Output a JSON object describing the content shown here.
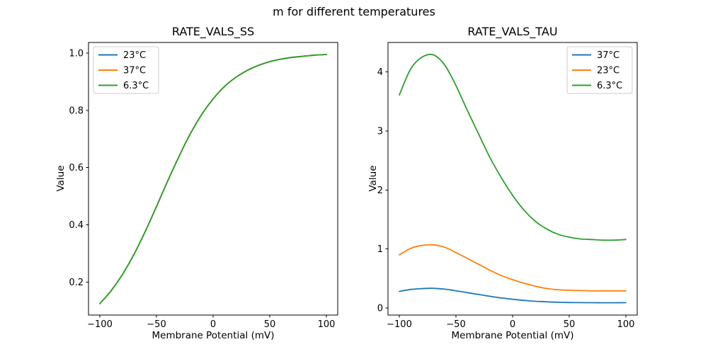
{
  "figure": {
    "suptitle": "m for different temperatures",
    "background": "#ffffff"
  },
  "palette": {
    "blue": "#1f77b4",
    "orange": "#ff7f0e",
    "green": "#2ca02c",
    "spine": "#000000",
    "legend_border": "#cccccc"
  },
  "chart_data": [
    {
      "type": "line",
      "title": "RATE_VALS_SS",
      "xlabel": "Membrane Potential (mV)",
      "ylabel": "Value",
      "xlim": [
        -110,
        110
      ],
      "ylim": [
        0.085,
        1.037
      ],
      "grid": false,
      "xticks": [
        {
          "v": -100,
          "label": "−100"
        },
        {
          "v": -50,
          "label": "−50"
        },
        {
          "v": 0,
          "label": "0"
        },
        {
          "v": 50,
          "label": "50"
        },
        {
          "v": 100,
          "label": "100"
        }
      ],
      "yticks": [
        {
          "v": 0.2,
          "label": "0.2"
        },
        {
          "v": 0.4,
          "label": "0.4"
        },
        {
          "v": 0.6,
          "label": "0.6"
        },
        {
          "v": 0.8,
          "label": "0.8"
        },
        {
          "v": 1.0,
          "label": "1.0"
        }
      ],
      "legend": {
        "position": "upper-left"
      },
      "x": [
        -100,
        -90,
        -80,
        -70,
        -60,
        -50,
        -40,
        -30,
        -20,
        -10,
        0,
        10,
        20,
        30,
        40,
        50,
        60,
        70,
        80,
        90,
        100
      ],
      "series": [
        {
          "name": "23°C",
          "color": "#1f77b4",
          "values": [
            0.125,
            0.17,
            0.227,
            0.296,
            0.376,
            0.464,
            0.554,
            0.64,
            0.719,
            0.786,
            0.84,
            0.883,
            0.915,
            0.939,
            0.957,
            0.97,
            0.979,
            0.985,
            0.989,
            0.993,
            0.995
          ]
        },
        {
          "name": "37°C",
          "color": "#ff7f0e",
          "values": [
            0.125,
            0.17,
            0.227,
            0.296,
            0.376,
            0.464,
            0.554,
            0.64,
            0.719,
            0.786,
            0.84,
            0.883,
            0.915,
            0.939,
            0.957,
            0.97,
            0.979,
            0.985,
            0.989,
            0.993,
            0.995
          ]
        },
        {
          "name": "6.3°C",
          "color": "#2ca02c",
          "values": [
            0.125,
            0.17,
            0.227,
            0.296,
            0.376,
            0.464,
            0.554,
            0.64,
            0.719,
            0.786,
            0.84,
            0.883,
            0.915,
            0.939,
            0.957,
            0.97,
            0.979,
            0.985,
            0.989,
            0.993,
            0.995
          ]
        }
      ],
      "note": "all three temperature curves coincide exactly; green (drawn last) is visible"
    },
    {
      "type": "line",
      "title": "RATE_VALS_TAU",
      "xlabel": "Membrane Potential (mV)",
      "ylabel": "Value",
      "xlim": [
        -110,
        110
      ],
      "ylim": [
        -0.12,
        4.5
      ],
      "grid": false,
      "xticks": [
        {
          "v": -100,
          "label": "−100"
        },
        {
          "v": -50,
          "label": "−50"
        },
        {
          "v": 0,
          "label": "0"
        },
        {
          "v": 50,
          "label": "50"
        },
        {
          "v": 100,
          "label": "100"
        }
      ],
      "yticks": [
        {
          "v": 0,
          "label": "0"
        },
        {
          "v": 1,
          "label": "1"
        },
        {
          "v": 2,
          "label": "2"
        },
        {
          "v": 3,
          "label": "3"
        },
        {
          "v": 4,
          "label": "4"
        }
      ],
      "legend": {
        "position": "upper-right"
      },
      "x": [
        -100,
        -90,
        -80,
        -70,
        -60,
        -50,
        -40,
        -30,
        -20,
        -10,
        0,
        10,
        20,
        30,
        40,
        50,
        60,
        70,
        80,
        90,
        100
      ],
      "series": [
        {
          "name": "37°C",
          "color": "#1f77b4",
          "values": [
            0.28,
            0.314,
            0.329,
            0.333,
            0.319,
            0.292,
            0.26,
            0.229,
            0.198,
            0.171,
            0.148,
            0.129,
            0.114,
            0.104,
            0.097,
            0.093,
            0.091,
            0.09,
            0.089,
            0.089,
            0.09
          ]
        },
        {
          "name": "23°C",
          "color": "#ff7f0e",
          "values": [
            0.9,
            1.01,
            1.06,
            1.07,
            1.03,
            0.94,
            0.84,
            0.74,
            0.64,
            0.55,
            0.48,
            0.42,
            0.37,
            0.33,
            0.31,
            0.3,
            0.295,
            0.29,
            0.29,
            0.29,
            0.29
          ]
        },
        {
          "name": "6.3°C",
          "color": "#2ca02c",
          "values": [
            3.61,
            4.05,
            4.25,
            4.29,
            4.12,
            3.77,
            3.35,
            2.95,
            2.55,
            2.21,
            1.91,
            1.66,
            1.47,
            1.34,
            1.25,
            1.2,
            1.17,
            1.16,
            1.15,
            1.15,
            1.16
          ]
        }
      ],
      "note": "tau curves peak near -70 mV; higher temperature gives smaller tau"
    }
  ]
}
